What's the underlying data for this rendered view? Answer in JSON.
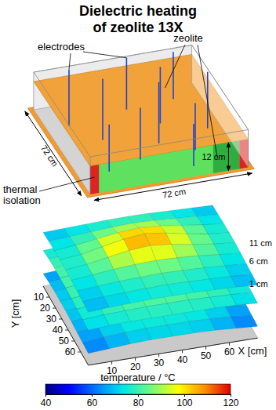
{
  "title": [
    "Dielectric heating",
    "of zeolite 13X"
  ],
  "diagram": {
    "labels": {
      "electrodes": "electrodes",
      "zeolite": "zeolite",
      "thermal_isolation": [
        "thermal",
        "isolation"
      ]
    },
    "dimensions": {
      "width": "72 cm",
      "depth": "72 cm",
      "height": "12 cm"
    }
  },
  "chart_data": {
    "type": "surface",
    "x_label": "X [cm]",
    "y_label": "Y [cm]",
    "xlim": [
      0,
      72
    ],
    "ylim": [
      0,
      72
    ],
    "xticks": [
      10,
      20,
      30,
      40,
      50,
      60
    ],
    "yticks": [
      10,
      20,
      30,
      40,
      50,
      60
    ],
    "x": [
      0,
      9,
      18,
      27,
      36,
      45,
      54,
      63,
      72
    ],
    "y": [
      0,
      9,
      18,
      27,
      36,
      45,
      54,
      63,
      72
    ],
    "layers": [
      {
        "name": "11 cm",
        "z": 11,
        "values": [
          [
            68,
            70,
            72,
            74,
            75,
            74,
            72,
            70,
            68
          ],
          [
            70,
            74,
            78,
            82,
            84,
            82,
            78,
            74,
            70
          ],
          [
            72,
            78,
            86,
            94,
            98,
            94,
            86,
            78,
            72
          ],
          [
            74,
            80,
            92,
            104,
            110,
            102,
            90,
            80,
            74
          ],
          [
            74,
            80,
            90,
            100,
            104,
            98,
            88,
            80,
            74
          ],
          [
            72,
            78,
            84,
            88,
            90,
            88,
            84,
            78,
            72
          ],
          [
            70,
            74,
            78,
            80,
            82,
            80,
            78,
            74,
            70
          ],
          [
            68,
            72,
            74,
            76,
            78,
            76,
            74,
            72,
            68
          ],
          [
            66,
            70,
            72,
            74,
            74,
            74,
            72,
            70,
            66
          ]
        ]
      },
      {
        "name": "6 cm",
        "z": 6,
        "values": [
          [
            72,
            76,
            78,
            80,
            80,
            80,
            78,
            76,
            72
          ],
          [
            76,
            80,
            84,
            86,
            86,
            86,
            84,
            80,
            76
          ],
          [
            78,
            84,
            88,
            90,
            92,
            90,
            88,
            84,
            78
          ],
          [
            78,
            84,
            90,
            94,
            96,
            92,
            88,
            84,
            78
          ],
          [
            78,
            84,
            88,
            92,
            94,
            90,
            88,
            84,
            78
          ],
          [
            76,
            82,
            86,
            88,
            88,
            88,
            86,
            82,
            76
          ],
          [
            74,
            80,
            82,
            84,
            84,
            84,
            82,
            80,
            74
          ],
          [
            72,
            76,
            78,
            80,
            80,
            80,
            78,
            76,
            72
          ],
          [
            70,
            74,
            76,
            76,
            76,
            76,
            76,
            74,
            70
          ]
        ]
      },
      {
        "name": "1 cm",
        "z": 1,
        "values": [
          [
            62,
            66,
            70,
            72,
            72,
            72,
            70,
            66,
            62
          ],
          [
            66,
            70,
            74,
            76,
            76,
            76,
            74,
            70,
            66
          ],
          [
            68,
            72,
            76,
            78,
            80,
            78,
            76,
            72,
            68
          ],
          [
            68,
            74,
            78,
            80,
            82,
            80,
            78,
            74,
            68
          ],
          [
            68,
            74,
            78,
            80,
            80,
            80,
            78,
            74,
            68
          ],
          [
            66,
            72,
            76,
            78,
            78,
            78,
            76,
            72,
            66
          ],
          [
            64,
            70,
            74,
            76,
            76,
            76,
            74,
            70,
            64
          ],
          [
            62,
            68,
            72,
            74,
            74,
            74,
            72,
            68,
            62
          ],
          [
            60,
            64,
            68,
            70,
            70,
            70,
            68,
            64,
            60
          ]
        ]
      }
    ],
    "colorbar": {
      "label": "temperature / °C",
      "range": [
        40,
        120
      ],
      "ticks": [
        40,
        60,
        80,
        100,
        120
      ]
    }
  }
}
